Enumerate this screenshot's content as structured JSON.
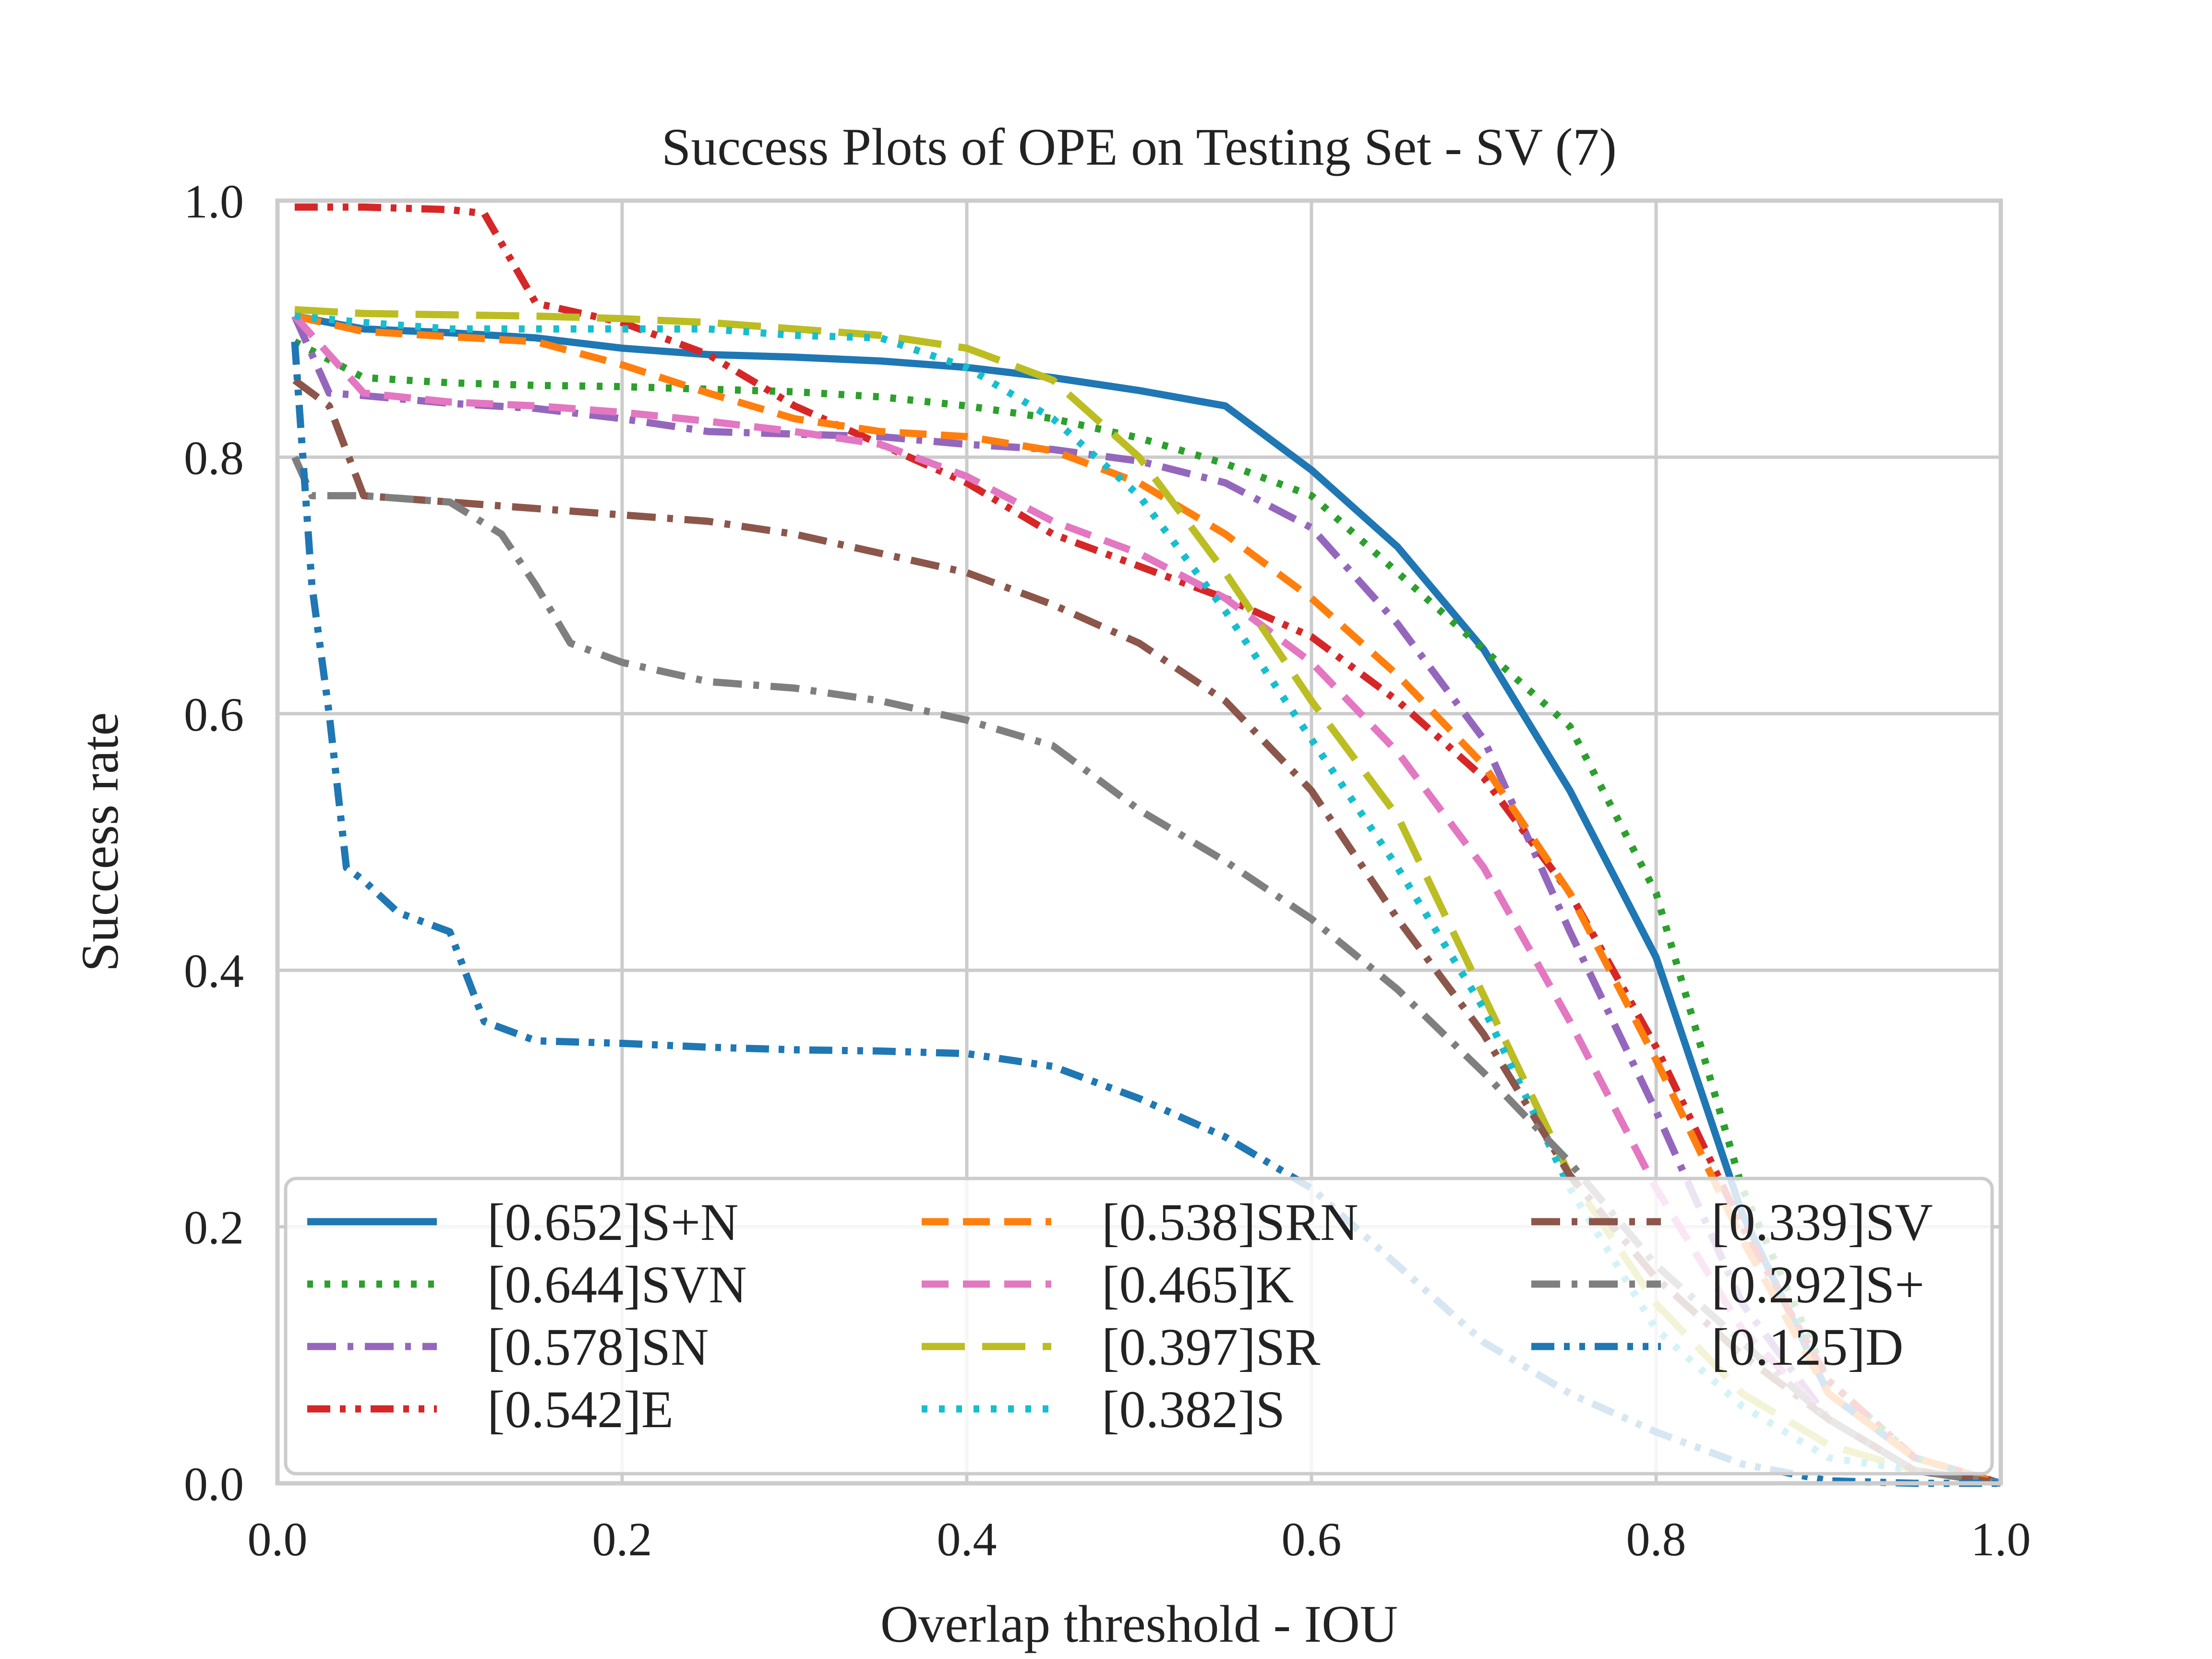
{
  "chart_data": {
    "type": "line",
    "title": "Success Plots of OPE on Testing Set - SV (7)",
    "xlabel": "Overlap threshold - IOU",
    "ylabel": "Success rate",
    "xlim": [
      0.0,
      1.0
    ],
    "ylim": [
      0.0,
      1.0
    ],
    "xticks": [
      "0.0",
      "0.2",
      "0.4",
      "0.6",
      "0.8",
      "1.0"
    ],
    "yticks": [
      "0.0",
      "0.2",
      "0.4",
      "0.6",
      "0.8",
      "1.0"
    ],
    "grid": true,
    "legend_position": "lower-center",
    "series": [
      {
        "name": "[0.652]S+N",
        "color": "#1f77b4",
        "dash": "solid",
        "x": [
          0.01,
          0.05,
          0.1,
          0.15,
          0.2,
          0.25,
          0.3,
          0.35,
          0.4,
          0.45,
          0.5,
          0.55,
          0.6,
          0.65,
          0.7,
          0.75,
          0.8,
          0.85,
          0.9,
          0.95,
          1.0
        ],
        "y": [
          0.91,
          0.9,
          0.897,
          0.893,
          0.885,
          0.88,
          0.878,
          0.875,
          0.87,
          0.862,
          0.852,
          0.84,
          0.79,
          0.73,
          0.65,
          0.54,
          0.41,
          0.21,
          0.07,
          0.02,
          0.0
        ]
      },
      {
        "name": "[0.644]SVN",
        "color": "#2ca02c",
        "dash": "dot",
        "x": [
          0.01,
          0.05,
          0.1,
          0.15,
          0.2,
          0.25,
          0.3,
          0.35,
          0.4,
          0.45,
          0.5,
          0.55,
          0.6,
          0.65,
          0.7,
          0.75,
          0.8,
          0.85,
          0.9,
          0.95,
          1.0
        ],
        "y": [
          0.89,
          0.862,
          0.858,
          0.856,
          0.855,
          0.853,
          0.851,
          0.847,
          0.84,
          0.83,
          0.815,
          0.795,
          0.77,
          0.71,
          0.65,
          0.59,
          0.46,
          0.23,
          0.08,
          0.02,
          0.0
        ]
      },
      {
        "name": "[0.578]SN",
        "color": "#9467bd",
        "dash": "dashdot",
        "x": [
          0.01,
          0.03,
          0.05,
          0.1,
          0.15,
          0.2,
          0.25,
          0.3,
          0.35,
          0.4,
          0.45,
          0.5,
          0.55,
          0.6,
          0.65,
          0.7,
          0.75,
          0.8,
          0.85,
          0.9,
          0.95,
          1.0
        ],
        "y": [
          0.91,
          0.85,
          0.848,
          0.842,
          0.838,
          0.83,
          0.82,
          0.818,
          0.816,
          0.81,
          0.806,
          0.797,
          0.78,
          0.745,
          0.67,
          0.58,
          0.43,
          0.29,
          0.14,
          0.05,
          0.01,
          0.0
        ]
      },
      {
        "name": "[0.542]E",
        "color": "#d62728",
        "dash": "dashdotdot",
        "x": [
          0.01,
          0.05,
          0.1,
          0.12,
          0.15,
          0.2,
          0.25,
          0.3,
          0.35,
          0.4,
          0.45,
          0.5,
          0.55,
          0.6,
          0.65,
          0.7,
          0.75,
          0.8,
          0.85,
          0.9,
          0.95,
          1.0
        ],
        "y": [
          0.995,
          0.995,
          0.993,
          0.99,
          0.92,
          0.905,
          0.88,
          0.84,
          0.81,
          0.78,
          0.74,
          0.715,
          0.69,
          0.66,
          0.61,
          0.55,
          0.46,
          0.34,
          0.2,
          0.08,
          0.02,
          0.0
        ]
      },
      {
        "name": "[0.538]SRN",
        "color": "#ff7f0e",
        "dash": "dash",
        "x": [
          0.01,
          0.05,
          0.1,
          0.15,
          0.2,
          0.25,
          0.3,
          0.35,
          0.4,
          0.45,
          0.5,
          0.55,
          0.6,
          0.65,
          0.7,
          0.75,
          0.8,
          0.85,
          0.9,
          0.95,
          1.0
        ],
        "y": [
          0.91,
          0.898,
          0.894,
          0.89,
          0.872,
          0.85,
          0.83,
          0.82,
          0.816,
          0.805,
          0.78,
          0.74,
          0.69,
          0.63,
          0.56,
          0.46,
          0.33,
          0.19,
          0.07,
          0.02,
          0.0
        ]
      },
      {
        "name": "[0.465]K",
        "color": "#e377c2",
        "dash": "dash",
        "x": [
          0.01,
          0.03,
          0.05,
          0.1,
          0.15,
          0.2,
          0.25,
          0.3,
          0.35,
          0.4,
          0.45,
          0.5,
          0.55,
          0.6,
          0.65,
          0.7,
          0.75,
          0.8,
          0.85,
          0.9,
          0.95,
          1.0
        ],
        "y": [
          0.91,
          0.88,
          0.85,
          0.843,
          0.84,
          0.835,
          0.828,
          0.82,
          0.81,
          0.785,
          0.75,
          0.725,
          0.69,
          0.64,
          0.57,
          0.48,
          0.36,
          0.23,
          0.12,
          0.05,
          0.01,
          0.0
        ]
      },
      {
        "name": "[0.397]SR",
        "color": "#bcbd22",
        "dash": "longdash",
        "x": [
          0.01,
          0.05,
          0.1,
          0.15,
          0.2,
          0.25,
          0.3,
          0.35,
          0.4,
          0.45,
          0.5,
          0.55,
          0.6,
          0.65,
          0.7,
          0.75,
          0.8,
          0.85,
          0.9,
          0.95,
          1.0
        ],
        "y": [
          0.915,
          0.912,
          0.911,
          0.91,
          0.908,
          0.905,
          0.9,
          0.895,
          0.885,
          0.86,
          0.8,
          0.71,
          0.61,
          0.52,
          0.38,
          0.24,
          0.14,
          0.07,
          0.03,
          0.01,
          0.0
        ]
      },
      {
        "name": "[0.382]S",
        "color": "#17becf",
        "dash": "dot",
        "x": [
          0.01,
          0.05,
          0.1,
          0.15,
          0.2,
          0.25,
          0.3,
          0.35,
          0.4,
          0.45,
          0.5,
          0.55,
          0.6,
          0.65,
          0.7,
          0.75,
          0.8,
          0.85,
          0.9,
          0.95,
          1.0
        ],
        "y": [
          0.91,
          0.905,
          0.9,
          0.9,
          0.9,
          0.9,
          0.895,
          0.893,
          0.87,
          0.83,
          0.77,
          0.68,
          0.58,
          0.48,
          0.37,
          0.23,
          0.12,
          0.06,
          0.02,
          0.01,
          0.0
        ]
      },
      {
        "name": "[0.339]SV",
        "color": "#8c564b",
        "dash": "dashdot",
        "x": [
          0.01,
          0.03,
          0.05,
          0.1,
          0.15,
          0.2,
          0.25,
          0.3,
          0.35,
          0.4,
          0.45,
          0.5,
          0.55,
          0.6,
          0.65,
          0.7,
          0.75,
          0.8,
          0.85,
          0.9,
          0.95,
          1.0
        ],
        "y": [
          0.86,
          0.84,
          0.77,
          0.765,
          0.76,
          0.755,
          0.75,
          0.74,
          0.725,
          0.71,
          0.685,
          0.655,
          0.61,
          0.54,
          0.44,
          0.35,
          0.24,
          0.16,
          0.1,
          0.05,
          0.01,
          0.0
        ]
      },
      {
        "name": "[0.292]S+",
        "color": "#7f7f7f",
        "dash": "dashdot",
        "x": [
          0.01,
          0.02,
          0.05,
          0.1,
          0.13,
          0.15,
          0.17,
          0.2,
          0.25,
          0.3,
          0.35,
          0.4,
          0.45,
          0.5,
          0.55,
          0.6,
          0.65,
          0.7,
          0.75,
          0.8,
          0.85,
          0.9,
          0.95,
          1.0
        ],
        "y": [
          0.8,
          0.77,
          0.77,
          0.765,
          0.74,
          0.7,
          0.655,
          0.64,
          0.625,
          0.62,
          0.61,
          0.595,
          0.575,
          0.525,
          0.485,
          0.44,
          0.385,
          0.32,
          0.25,
          0.17,
          0.11,
          0.05,
          0.01,
          0.0
        ]
      },
      {
        "name": "[0.125]D",
        "color": "#1f77b4",
        "dash": "dashdotdot",
        "x": [
          0.01,
          0.02,
          0.03,
          0.04,
          0.05,
          0.07,
          0.1,
          0.12,
          0.15,
          0.2,
          0.25,
          0.3,
          0.35,
          0.4,
          0.45,
          0.5,
          0.55,
          0.6,
          0.65,
          0.7,
          0.75,
          0.8,
          0.85,
          0.9,
          0.95,
          1.0
        ],
        "y": [
          0.89,
          0.7,
          0.6,
          0.48,
          0.47,
          0.445,
          0.43,
          0.36,
          0.345,
          0.343,
          0.34,
          0.338,
          0.337,
          0.335,
          0.325,
          0.3,
          0.27,
          0.23,
          0.17,
          0.11,
          0.07,
          0.04,
          0.015,
          0.002,
          0.0,
          0.0
        ]
      }
    ]
  }
}
